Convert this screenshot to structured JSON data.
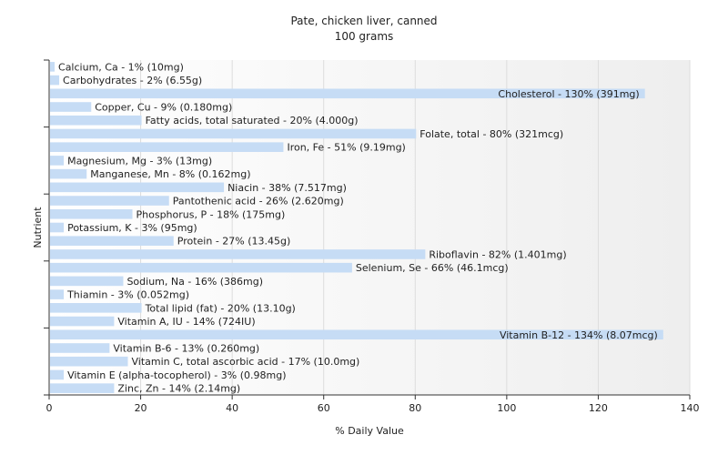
{
  "chart_data": {
    "type": "bar",
    "orientation": "horizontal",
    "title": "Pate, chicken liver, canned",
    "subtitle": "100 grams",
    "xlabel": "% Daily Value",
    "ylabel": "Nutrient",
    "xlim": [
      0,
      140
    ],
    "xticks": [
      "0",
      "20",
      "40",
      "60",
      "80",
      "100",
      "120",
      "140"
    ],
    "grid": true,
    "bar_color": "#c6dcf5",
    "categories": [
      "Calcium, Ca",
      "Carbohydrates",
      "Cholesterol",
      "Copper, Cu",
      "Fatty acids, total saturated",
      "Folate, total",
      "Iron, Fe",
      "Magnesium, Mg",
      "Manganese, Mn",
      "Niacin",
      "Pantothenic acid",
      "Phosphorus, P",
      "Potassium, K",
      "Protein",
      "Riboflavin",
      "Selenium, Se",
      "Sodium, Na",
      "Thiamin",
      "Total lipid (fat)",
      "Vitamin A, IU",
      "Vitamin B-12",
      "Vitamin B-6",
      "Vitamin C, total ascorbic acid",
      "Vitamin E (alpha-tocopherol)",
      "Zinc, Zn"
    ],
    "values": [
      1,
      2,
      130,
      9,
      20,
      80,
      51,
      3,
      8,
      38,
      26,
      18,
      3,
      27,
      82,
      66,
      16,
      3,
      20,
      14,
      134,
      13,
      17,
      3,
      14
    ],
    "labels": [
      "Calcium, Ca - 1% (10mg)",
      "Carbohydrates - 2% (6.55g)",
      "Cholesterol - 130% (391mg)",
      "Copper, Cu - 9% (0.180mg)",
      "Fatty acids, total saturated - 20% (4.000g)",
      "Folate, total - 80% (321mcg)",
      "Iron, Fe - 51% (9.19mg)",
      "Magnesium, Mg - 3% (13mg)",
      "Manganese, Mn - 8% (0.162mg)",
      "Niacin - 38% (7.517mg)",
      "Pantothenic acid - 26% (2.620mg)",
      "Phosphorus, P - 18% (175mg)",
      "Potassium, K - 3% (95mg)",
      "Protein - 27% (13.45g)",
      "Riboflavin - 82% (1.401mg)",
      "Selenium, Se - 66% (46.1mcg)",
      "Sodium, Na - 16% (386mg)",
      "Thiamin - 3% (0.052mg)",
      "Total lipid (fat) - 20% (13.10g)",
      "Vitamin A, IU - 14% (724IU)",
      "Vitamin B-12 - 134% (8.07mcg)",
      "Vitamin B-6 - 13% (0.260mg)",
      "Vitamin C, total ascorbic acid - 17% (10.0mg)",
      "Vitamin E (alpha-tocopherol) - 3% (0.98mg)",
      "Zinc, Zn - 14% (2.14mg)"
    ]
  }
}
